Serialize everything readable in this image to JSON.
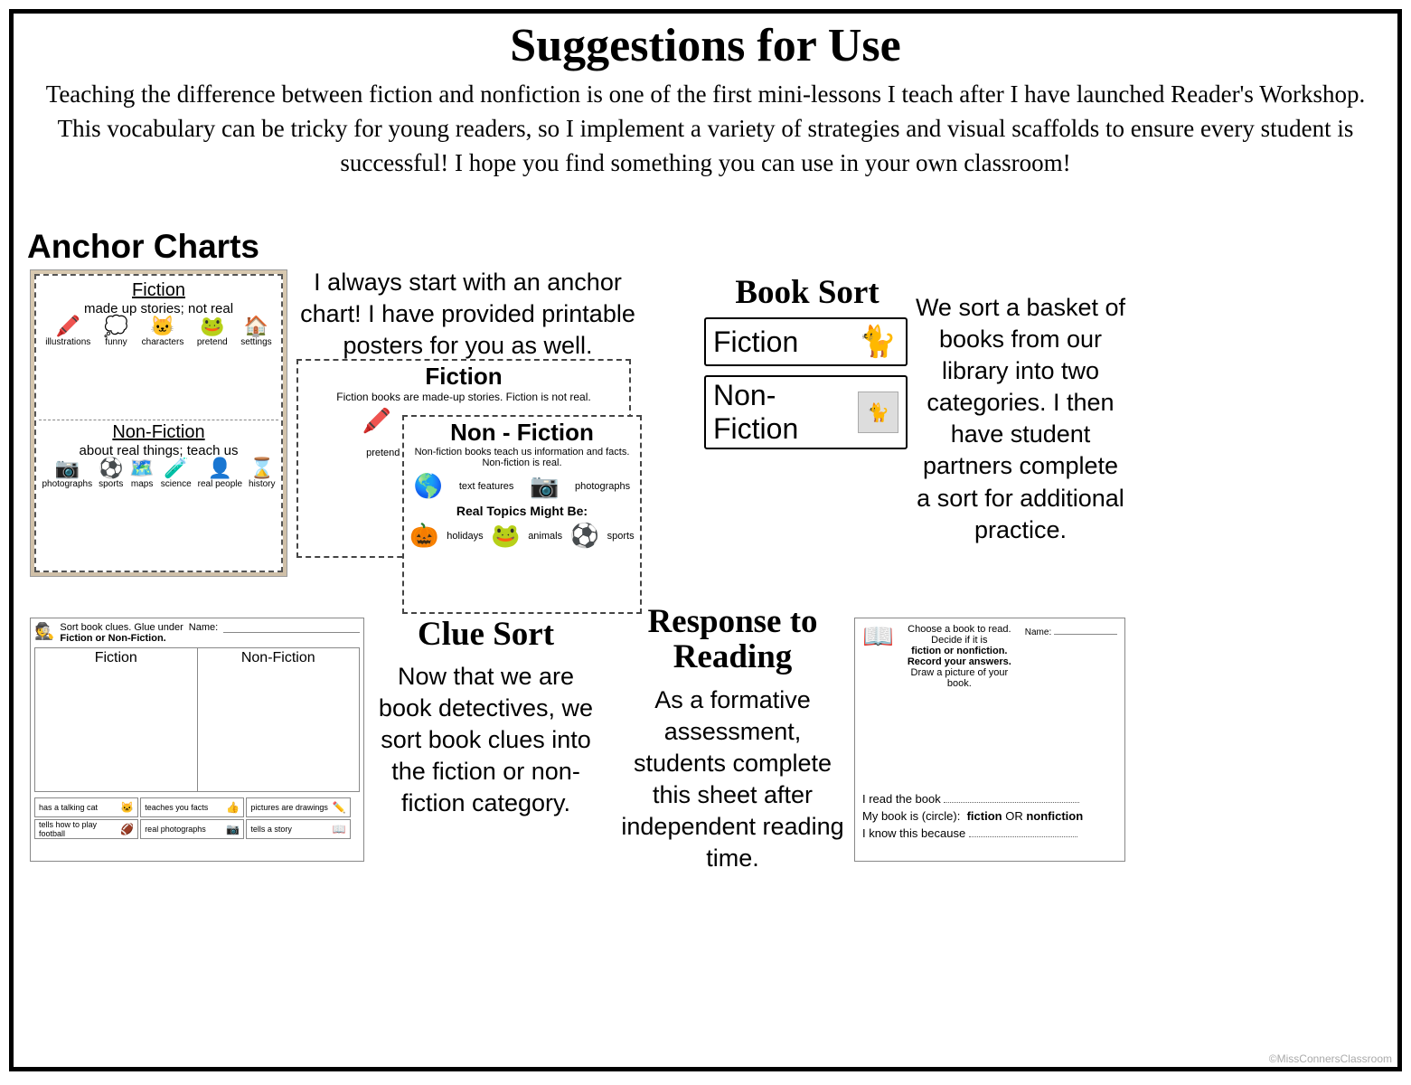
{
  "page": {
    "title": "Suggestions for Use",
    "intro": "Teaching the difference between fiction and nonfiction is one of the first mini-lessons I teach after I have launched Reader's Workshop. This vocabulary can be tricky for young readers, so I implement a variety of strategies and visual scaffolds to ensure every student is successful! I hope you find something you can use in your own classroom!",
    "credit": "©MissConnersClassroom"
  },
  "anchor": {
    "heading": "Anchor Charts",
    "desc": "I always start with an anchor chart! I have provided printable posters for you as well.",
    "poster_photo": {
      "fiction_title": "Fiction",
      "fiction_sub": "made up stories; not real",
      "fiction_labels": [
        "illustrations",
        "funny",
        "characters",
        "pretend",
        "settings"
      ],
      "nonfic_title": "Non-Fiction",
      "nonfic_sub": "about real things; teach us",
      "nonfic_labels": [
        "photographs",
        "sports",
        "maps",
        "science",
        "real people",
        "history"
      ]
    },
    "mini_fiction": {
      "title": "Fiction",
      "sub": "Fiction books are made-up stories. Fiction is not real.",
      "items": [
        "illustrations",
        "pretend"
      ]
    },
    "mini_nonfiction": {
      "title": "Non - Fiction",
      "sub1": "Non-fiction books teach us information and facts.",
      "sub2": "Non-fiction is real.",
      "row1": [
        "text features",
        "photographs"
      ],
      "topics_title": "Real Topics Might Be:",
      "topics": [
        "holidays",
        "animals",
        "sports"
      ]
    }
  },
  "booksort": {
    "heading": "Book Sort",
    "card1": "Fiction",
    "card2": "Non-Fiction",
    "desc": "We sort a basket of books from our library into two categories. I then have student partners complete a sort for additional practice."
  },
  "cluesort": {
    "heading": "Clue Sort",
    "desc": "Now that we are book detectives, we sort book clues into the fiction or non-fiction category.",
    "worksheet": {
      "instructions": "Sort book clues. Glue under",
      "instructions2": "Fiction or Non-Fiction.",
      "name_label": "Name:",
      "col1": "Fiction",
      "col2": "Non-Fiction",
      "tiles": [
        {
          "t": "has a talking cat",
          "i": "🐱"
        },
        {
          "t": "teaches you facts",
          "i": "👍"
        },
        {
          "t": "pictures are drawings",
          "i": "✏️"
        },
        {
          "t": "tells how to play football",
          "i": "🏈"
        },
        {
          "t": "real photographs",
          "i": "📷"
        },
        {
          "t": "tells a story",
          "i": "📖"
        }
      ]
    }
  },
  "response": {
    "heading": "Response to Reading",
    "desc": "As a formative assessment, students complete this sheet after independent reading time.",
    "worksheet": {
      "name_label": "Name:",
      "instr1": "Choose a book to read. Decide if it is",
      "instr2": "fiction or nonfiction. Record your answers.",
      "instr3": "Draw a picture of your book.",
      "line1": "I read the book",
      "line2_a": "My book is (circle):",
      "line2_b": "fiction",
      "line2_c": "OR",
      "line2_d": "nonfiction",
      "line3": "I know this because"
    }
  }
}
